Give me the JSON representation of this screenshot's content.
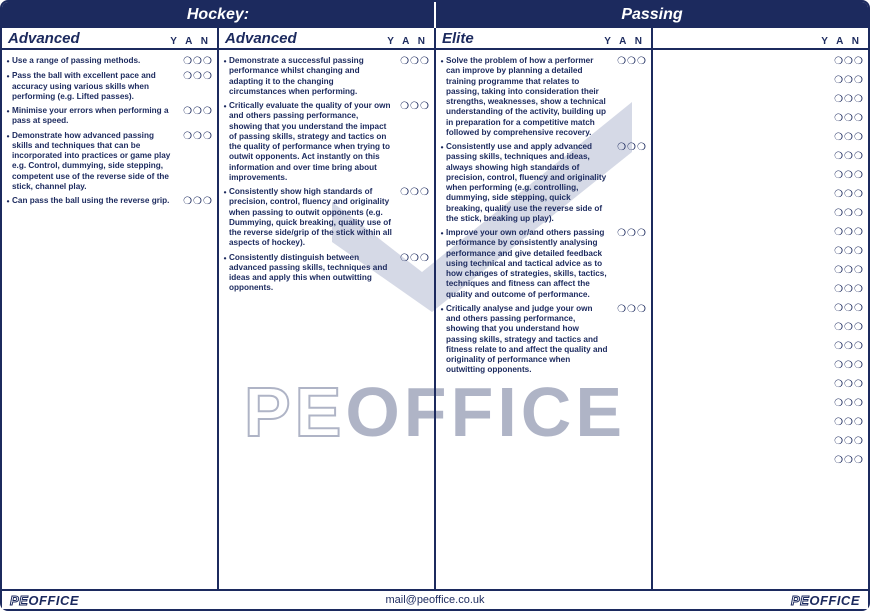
{
  "colors": {
    "primary": "#1c2a5e",
    "background": "#ffffff"
  },
  "header": {
    "left": "Hockey:",
    "right": "Passing"
  },
  "yan_label": "Y A N",
  "yan_glyphs": "❍❍❍",
  "columns": [
    {
      "title": "Advanced",
      "items": [
        "Use a range of passing methods.",
        "Pass the ball with excellent pace and accuracy using various skills when performing (e.g. Lifted passes).",
        "Minimise your errors when performing a pass at speed.",
        "Demonstrate how advanced passing skills and techniques that can be incorporated into practices or game play e.g. Control, dummying, side stepping, competent use of the reverse side of the stick, channel play.",
        "Can pass the ball using the reverse grip."
      ],
      "empty_rows": 0
    },
    {
      "title": "Advanced",
      "items": [
        "Demonstrate a successful passing performance whilst changing and adapting it to the changing circumstances when performing.",
        "Critically evaluate the quality of your own and others passing performance, showing that you understand the impact of passing skills, strategy and tactics on the quality of performance when trying to outwit opponents. Act instantly on this information and over time bring about improvements.",
        "Consistently show high standards of precision, control, fluency and originality when passing to outwit opponents (e.g. Dummying, quick breaking, quality use of the reverse side/grip of the stick within all aspects of hockey).",
        "Consistently distinguish between advanced passing skills, techniques and ideas and apply this when outwitting opponents."
      ],
      "empty_rows": 0
    },
    {
      "title": "Elite",
      "items": [
        "Solve the problem of how a performer can improve by planning a detailed training programme that relates to passing, taking into consideration their strengths, weaknesses, show a technical understanding of the activity, building up in preparation for a competitive match followed by comprehensive recovery.",
        "Consistently use and apply advanced passing skills, techniques and ideas, always showing high standards of precision, control, fluency and originality when performing (e.g. controlling, dummying, side stepping, quick breaking, quality use the reverse side of the stick, breaking up play).",
        "Improve your own or/and others passing performance by consistently analysing performance and give detailed feedback using technical and tactical advice as to how changes of strategies, skills, tactics, techniques and fitness can affect the quality and outcome of performance.",
        "Critically analyse and judge your own and others passing performance, showing that you understand how passing skills, strategy and tactics and fitness relate to and affect the quality and originality of performance when outwitting opponents."
      ],
      "empty_rows": 0
    },
    {
      "title": "",
      "items": [],
      "empty_rows": 22
    }
  ],
  "footer": {
    "logo_pe": "PE",
    "logo_office": "OFFICE",
    "email": "mail@peoffice.co.uk"
  },
  "watermark": {
    "pe": "PE",
    "office": "OFFICE"
  }
}
